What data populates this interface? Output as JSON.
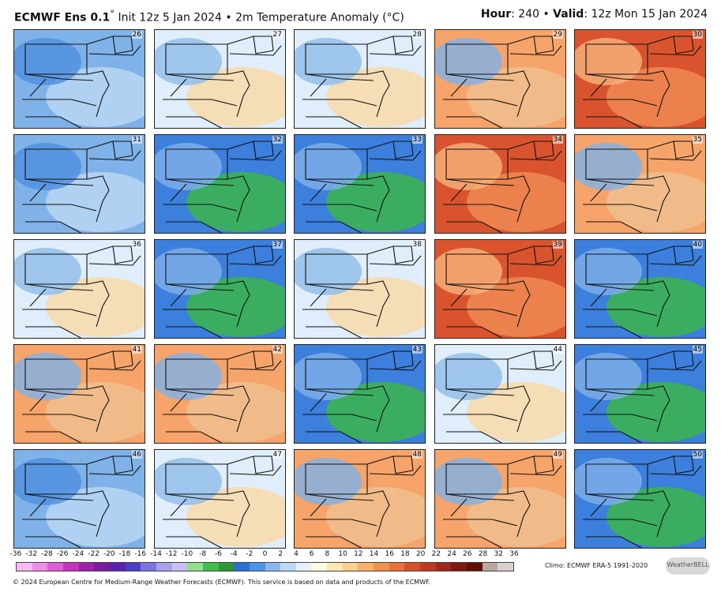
{
  "header": {
    "model": "ECMWF Ens 0.1",
    "degree": "°",
    "init": "Init 12z 5 Jan 2024",
    "bullet": "•",
    "field": "2m Temperature Anomaly (°C)",
    "hour_label": "Hour",
    "hour_value": ": 240 •",
    "valid_label": "Valid",
    "valid_value": ": 12z Mon 15 Jan 2024"
  },
  "panels": [
    {
      "member": "26",
      "style": "cold"
    },
    {
      "member": "31",
      "style": "cold"
    },
    {
      "member": "36",
      "style": "mixed"
    },
    {
      "member": "41",
      "style": "warm"
    },
    {
      "member": "46",
      "style": "cold"
    },
    {
      "member": "27",
      "style": "mixed"
    },
    {
      "member": "32",
      "style": "verycold"
    },
    {
      "member": "37",
      "style": "verycold"
    },
    {
      "member": "42",
      "style": "warm"
    },
    {
      "member": "47",
      "style": "mixed"
    },
    {
      "member": "28",
      "style": "mixed"
    },
    {
      "member": "33",
      "style": "verycold"
    },
    {
      "member": "38",
      "style": "mixed"
    },
    {
      "member": "43",
      "style": "verycold"
    },
    {
      "member": "48",
      "style": "warm"
    },
    {
      "member": "29",
      "style": "warm"
    },
    {
      "member": "34",
      "style": "hot"
    },
    {
      "member": "39",
      "style": "hot"
    },
    {
      "member": "44",
      "style": "mixed"
    },
    {
      "member": "49",
      "style": "warm"
    },
    {
      "member": "30",
      "style": "hot"
    },
    {
      "member": "35",
      "style": "warm"
    },
    {
      "member": "40",
      "style": "verycold"
    },
    {
      "member": "45",
      "style": "verycold"
    },
    {
      "member": "50",
      "style": "verycold"
    }
  ],
  "colorbar": {
    "ticks": [
      "-36",
      "-32",
      "-28",
      "-26",
      "-24",
      "-22",
      "-20",
      "-18",
      "-16",
      "-14",
      "-12",
      "-10",
      "-8",
      "-6",
      "-4",
      "-2",
      "0",
      "2",
      "4",
      "6",
      "8",
      "10",
      "12",
      "14",
      "16",
      "18",
      "20",
      "22",
      "24",
      "26",
      "28",
      "32",
      "36"
    ],
    "colors": [
      "#f5b8f0",
      "#ee8ee6",
      "#e05cd8",
      "#c832c0",
      "#a020a8",
      "#7a1aa0",
      "#5a20b0",
      "#4a3ec8",
      "#7a74e0",
      "#a8a2ee",
      "#c8c0f2",
      "#8ee08a",
      "#3fbf4a",
      "#2a9a36",
      "#2c6fd6",
      "#4a94e6",
      "#8ab8ee",
      "#bcd8f4",
      "#e6f0fa",
      "#fcfce0",
      "#fde8b0",
      "#fbd08a",
      "#f8b06a",
      "#f2904e",
      "#e8703a",
      "#d8502a",
      "#c03820",
      "#a02818",
      "#801810",
      "#601008",
      "#b8a8a0",
      "#d8d0cc"
    ]
  },
  "climo": "Climo: ECMWF ERA-5 1991-2020",
  "logo_text": "WeatherBELL",
  "footer": "© 2024 European Centre for Medium-Range Weather Forecasts (ECMWF). This service is based on data and products of the ECMWF.",
  "palette": {
    "cold": [
      "#7fb2e8",
      "#b9d6f3",
      "#4f8fde"
    ],
    "mixed": [
      "#dfeefa",
      "#f9d9a8",
      "#8fbbe9"
    ],
    "warm": [
      "#f6a46a",
      "#f0c08e",
      "#7fb2e8"
    ],
    "hot": [
      "#d9542e",
      "#ee8a52",
      "#f7b37a"
    ],
    "verycold": [
      "#3c7fdc",
      "#3bb54a",
      "#7fb0ea"
    ]
  }
}
